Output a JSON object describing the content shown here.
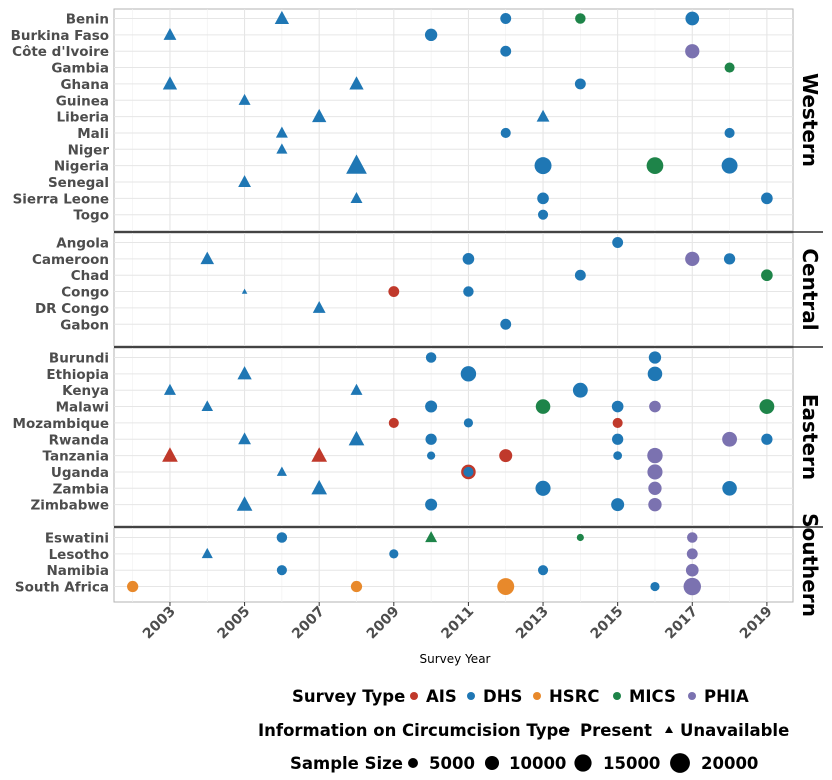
{
  "chart_data": {
    "type": "scatter",
    "xlabel": "Survey Year",
    "ylabel": "",
    "xlim": [
      2001.5,
      2019.7
    ],
    "x_ticks": [
      2003,
      2005,
      2007,
      2009,
      2011,
      2013,
      2015,
      2017,
      2019
    ],
    "grid": true,
    "legend_position": "bottom",
    "colors": {
      "AIS": "#C0392B",
      "DHS": "#1F77B4",
      "HSRC": "#E8892B",
      "MICS": "#1E8449",
      "PHIA": "#7B72B0"
    },
    "legend": {
      "type": {
        "title": "Survey Type",
        "entries": [
          "AIS",
          "DHS",
          "HSRC",
          "MICS",
          "PHIA"
        ]
      },
      "circ": {
        "title": "Information on Circumcision Type",
        "entries": [
          "Present",
          "Unavailable"
        ]
      },
      "size": {
        "title": "Sample Size",
        "entries": [
          "5000",
          "10000",
          "15000",
          "20000"
        ],
        "values": [
          5000,
          10000,
          15000,
          20000
        ]
      }
    },
    "facets": [
      {
        "name": "Western",
        "countries": [
          "Benin",
          "Burkina Faso",
          "Côte d'Ivoire",
          "Gambia",
          "Ghana",
          "Guinea",
          "Liberia",
          "Mali",
          "Niger",
          "Nigeria",
          "Senegal",
          "Sierra Leone",
          "Togo"
        ],
        "points": [
          {
            "c": "Benin",
            "x": 2006,
            "t": "DHS",
            "s": "Unavailable",
            "n": 10000
          },
          {
            "c": "Benin",
            "x": 2012,
            "t": "DHS",
            "s": "Present",
            "n": 7000
          },
          {
            "c": "Benin",
            "x": 2014,
            "t": "MICS",
            "s": "Present",
            "n": 6500
          },
          {
            "c": "Benin",
            "x": 2017,
            "t": "DHS",
            "s": "Present",
            "n": 11000
          },
          {
            "c": "Burkina Faso",
            "x": 2003,
            "t": "DHS",
            "s": "Unavailable",
            "n": 8000
          },
          {
            "c": "Burkina Faso",
            "x": 2010,
            "t": "DHS",
            "s": "Present",
            "n": 9000
          },
          {
            "c": "Côte d'Ivoire",
            "x": 2012,
            "t": "DHS",
            "s": "Present",
            "n": 7000
          },
          {
            "c": "Côte d'Ivoire",
            "x": 2017,
            "t": "PHIA",
            "s": "Present",
            "n": 12000
          },
          {
            "c": "Gambia",
            "x": 2018,
            "t": "MICS",
            "s": "Present",
            "n": 6000
          },
          {
            "c": "Ghana",
            "x": 2003,
            "t": "DHS",
            "s": "Unavailable",
            "n": 10000
          },
          {
            "c": "Ghana",
            "x": 2008,
            "t": "DHS",
            "s": "Unavailable",
            "n": 10000
          },
          {
            "c": "Ghana",
            "x": 2014,
            "t": "DHS",
            "s": "Present",
            "n": 7000
          },
          {
            "c": "Guinea",
            "x": 2005,
            "t": "DHS",
            "s": "Unavailable",
            "n": 7000
          },
          {
            "c": "Liberia",
            "x": 2007,
            "t": "DHS",
            "s": "Unavailable",
            "n": 10000
          },
          {
            "c": "Liberia",
            "x": 2013,
            "t": "DHS",
            "s": "Unavailable",
            "n": 8000
          },
          {
            "c": "Mali",
            "x": 2006,
            "t": "DHS",
            "s": "Unavailable",
            "n": 7000
          },
          {
            "c": "Mali",
            "x": 2012,
            "t": "DHS",
            "s": "Present",
            "n": 6000
          },
          {
            "c": "Mali",
            "x": 2018,
            "t": "DHS",
            "s": "Present",
            "n": 6000
          },
          {
            "c": "Niger",
            "x": 2006,
            "t": "DHS",
            "s": "Unavailable",
            "n": 6000
          },
          {
            "c": "Nigeria",
            "x": 2008,
            "t": "DHS",
            "s": "Unavailable",
            "n": 21000
          },
          {
            "c": "Nigeria",
            "x": 2013,
            "t": "DHS",
            "s": "Present",
            "n": 17000
          },
          {
            "c": "Nigeria",
            "x": 2016,
            "t": "MICS",
            "s": "Present",
            "n": 16500
          },
          {
            "c": "Nigeria",
            "x": 2018,
            "t": "DHS",
            "s": "Present",
            "n": 15000
          },
          {
            "c": "Senegal",
            "x": 2005,
            "t": "DHS",
            "s": "Unavailable",
            "n": 8000
          },
          {
            "c": "Sierra Leone",
            "x": 2008,
            "t": "DHS",
            "s": "Unavailable",
            "n": 7000
          },
          {
            "c": "Sierra Leone",
            "x": 2013,
            "t": "DHS",
            "s": "Present",
            "n": 8000
          },
          {
            "c": "Sierra Leone",
            "x": 2019,
            "t": "DHS",
            "s": "Present",
            "n": 8000
          },
          {
            "c": "Togo",
            "x": 2013,
            "t": "DHS",
            "s": "Present",
            "n": 6000
          }
        ]
      },
      {
        "name": "Central",
        "countries": [
          "Angola",
          "Cameroon",
          "Chad",
          "Congo",
          "DR Congo",
          "Gabon"
        ],
        "points": [
          {
            "c": "Angola",
            "x": 2015,
            "t": "DHS",
            "s": "Present",
            "n": 7000
          },
          {
            "c": "Cameroon",
            "x": 2004,
            "t": "DHS",
            "s": "Unavailable",
            "n": 9000
          },
          {
            "c": "Cameroon",
            "x": 2011,
            "t": "DHS",
            "s": "Present",
            "n": 8000
          },
          {
            "c": "Cameroon",
            "x": 2017,
            "t": "PHIA",
            "s": "Present",
            "n": 12000
          },
          {
            "c": "Cameroon",
            "x": 2018,
            "t": "DHS",
            "s": "Present",
            "n": 7500
          },
          {
            "c": "Chad",
            "x": 2014,
            "t": "DHS",
            "s": "Present",
            "n": 7000
          },
          {
            "c": "Chad",
            "x": 2019,
            "t": "MICS",
            "s": "Present",
            "n": 8000
          },
          {
            "c": "Congo",
            "x": 2005,
            "t": "DHS",
            "s": "Unavailable",
            "n": 1500
          },
          {
            "c": "Congo",
            "x": 2009,
            "t": "AIS",
            "s": "Present",
            "n": 7000
          },
          {
            "c": "Congo",
            "x": 2011,
            "t": "DHS",
            "s": "Present",
            "n": 6500
          },
          {
            "c": "DR Congo",
            "x": 2007,
            "t": "DHS",
            "s": "Unavailable",
            "n": 8000
          },
          {
            "c": "Gabon",
            "x": 2012,
            "t": "DHS",
            "s": "Present",
            "n": 7000
          }
        ]
      },
      {
        "name": "Eastern",
        "countries": [
          "Burundi",
          "Ethiopia",
          "Kenya",
          "Malawi",
          "Mozambique",
          "Rwanda",
          "Tanzania",
          "Uganda",
          "Zambia",
          "Zimbabwe"
        ],
        "points": [
          {
            "c": "Burundi",
            "x": 2010,
            "t": "DHS",
            "s": "Present",
            "n": 6500
          },
          {
            "c": "Burundi",
            "x": 2016,
            "t": "DHS",
            "s": "Present",
            "n": 9000
          },
          {
            "c": "Ethiopia",
            "x": 2005,
            "t": "DHS",
            "s": "Unavailable",
            "n": 10000
          },
          {
            "c": "Ethiopia",
            "x": 2011,
            "t": "DHS",
            "s": "Present",
            "n": 14000
          },
          {
            "c": "Ethiopia",
            "x": 2016,
            "t": "DHS",
            "s": "Present",
            "n": 12500
          },
          {
            "c": "Kenya",
            "x": 2003,
            "t": "DHS",
            "s": "Unavailable",
            "n": 7000
          },
          {
            "c": "Kenya",
            "x": 2008,
            "t": "DHS",
            "s": "Unavailable",
            "n": 7000
          },
          {
            "c": "Kenya",
            "x": 2014,
            "t": "DHS",
            "s": "Present",
            "n": 13000
          },
          {
            "c": "Malawi",
            "x": 2004,
            "t": "DHS",
            "s": "Unavailable",
            "n": 6500
          },
          {
            "c": "Malawi",
            "x": 2010,
            "t": "DHS",
            "s": "Present",
            "n": 8500
          },
          {
            "c": "Malawi",
            "x": 2013,
            "t": "MICS",
            "s": "Present",
            "n": 12500
          },
          {
            "c": "Malawi",
            "x": 2015,
            "t": "DHS",
            "s": "Present",
            "n": 8000
          },
          {
            "c": "Malawi",
            "x": 2016,
            "t": "PHIA",
            "s": "Present",
            "n": 8000
          },
          {
            "c": "Malawi",
            "x": 2019,
            "t": "MICS",
            "s": "Present",
            "n": 13000
          },
          {
            "c": "Mozambique",
            "x": 2009,
            "t": "AIS",
            "s": "Present",
            "n": 6000
          },
          {
            "c": "Mozambique",
            "x": 2011,
            "t": "DHS",
            "s": "Present",
            "n": 5000
          },
          {
            "c": "Mozambique",
            "x": 2015,
            "t": "AIS",
            "s": "Present",
            "n": 6000
          },
          {
            "c": "Rwanda",
            "x": 2005,
            "t": "DHS",
            "s": "Unavailable",
            "n": 8000
          },
          {
            "c": "Rwanda",
            "x": 2008,
            "t": "DHS",
            "s": "Unavailable",
            "n": 12000
          },
          {
            "c": "Rwanda",
            "x": 2010,
            "t": "DHS",
            "s": "Present",
            "n": 7500
          },
          {
            "c": "Rwanda",
            "x": 2015,
            "t": "DHS",
            "s": "Present",
            "n": 7500
          },
          {
            "c": "Rwanda",
            "x": 2018,
            "t": "PHIA",
            "s": "Present",
            "n": 13000
          },
          {
            "c": "Rwanda",
            "x": 2019,
            "t": "DHS",
            "s": "Present",
            "n": 7500
          },
          {
            "c": "Tanzania",
            "x": 2003,
            "t": "AIS",
            "s": "Unavailable",
            "n": 12000
          },
          {
            "c": "Tanzania",
            "x": 2007,
            "t": "AIS",
            "s": "Unavailable",
            "n": 12000
          },
          {
            "c": "Tanzania",
            "x": 2010,
            "t": "DHS",
            "s": "Present",
            "n": 4000
          },
          {
            "c": "Tanzania",
            "x": 2012,
            "t": "AIS",
            "s": "Present",
            "n": 10000
          },
          {
            "c": "Tanzania",
            "x": 2015,
            "t": "DHS",
            "s": "Present",
            "n": 4500
          },
          {
            "c": "Tanzania",
            "x": 2016,
            "t": "PHIA",
            "s": "Present",
            "n": 14000
          },
          {
            "c": "Uganda",
            "x": 2006,
            "t": "DHS",
            "s": "Unavailable",
            "n": 5000
          },
          {
            "c": "Uganda",
            "x": 2011,
            "t": "AIS",
            "s": "Present",
            "n": 12500
          },
          {
            "c": "Uganda",
            "x": 2011,
            "t": "DHS",
            "s": "Present",
            "n": 6000
          },
          {
            "c": "Uganda",
            "x": 2016,
            "t": "PHIA",
            "s": "Present",
            "n": 13500
          },
          {
            "c": "Zambia",
            "x": 2007,
            "t": "DHS",
            "s": "Unavailable",
            "n": 12000
          },
          {
            "c": "Zambia",
            "x": 2013,
            "t": "DHS",
            "s": "Present",
            "n": 13500
          },
          {
            "c": "Zambia",
            "x": 2016,
            "t": "PHIA",
            "s": "Present",
            "n": 10500
          },
          {
            "c": "Zambia",
            "x": 2018,
            "t": "DHS",
            "s": "Present",
            "n": 12500
          },
          {
            "c": "Zimbabwe",
            "x": 2005,
            "t": "DHS",
            "s": "Unavailable",
            "n": 12000
          },
          {
            "c": "Zimbabwe",
            "x": 2010,
            "t": "DHS",
            "s": "Present",
            "n": 8500
          },
          {
            "c": "Zimbabwe",
            "x": 2015,
            "t": "DHS",
            "s": "Present",
            "n": 10000
          },
          {
            "c": "Zimbabwe",
            "x": 2016,
            "t": "PHIA",
            "s": "Present",
            "n": 10500
          }
        ]
      },
      {
        "name": "Southern",
        "countries": [
          "Eswatini",
          "Lesotho",
          "Namibia",
          "South Africa"
        ],
        "points": [
          {
            "c": "Eswatini",
            "x": 2006,
            "t": "DHS",
            "s": "Present",
            "n": 6500
          },
          {
            "c": "Eswatini",
            "x": 2010,
            "t": "MICS",
            "s": "Unavailable",
            "n": 7000
          },
          {
            "c": "Eswatini",
            "x": 2014,
            "t": "MICS",
            "s": "Present",
            "n": 3000
          },
          {
            "c": "Eswatini",
            "x": 2017,
            "t": "PHIA",
            "s": "Present",
            "n": 6500
          },
          {
            "c": "Lesotho",
            "x": 2004,
            "t": "DHS",
            "s": "Unavailable",
            "n": 6000
          },
          {
            "c": "Lesotho",
            "x": 2009,
            "t": "DHS",
            "s": "Present",
            "n": 5000
          },
          {
            "c": "Lesotho",
            "x": 2017,
            "t": "PHIA",
            "s": "Present",
            "n": 7000
          },
          {
            "c": "Namibia",
            "x": 2006,
            "t": "DHS",
            "s": "Present",
            "n": 6000
          },
          {
            "c": "Namibia",
            "x": 2013,
            "t": "DHS",
            "s": "Present",
            "n": 6000
          },
          {
            "c": "Namibia",
            "x": 2017,
            "t": "PHIA",
            "s": "Present",
            "n": 9500
          },
          {
            "c": "South Africa",
            "x": 2002,
            "t": "HSRC",
            "s": "Present",
            "n": 7500
          },
          {
            "c": "South Africa",
            "x": 2008,
            "t": "HSRC",
            "s": "Present",
            "n": 7500
          },
          {
            "c": "South Africa",
            "x": 2012,
            "t": "HSRC",
            "s": "Present",
            "n": 17000
          },
          {
            "c": "South Africa",
            "x": 2016,
            "t": "DHS",
            "s": "Present",
            "n": 5000
          },
          {
            "c": "South Africa",
            "x": 2017,
            "t": "PHIA",
            "s": "Present",
            "n": 18000
          }
        ]
      }
    ]
  }
}
